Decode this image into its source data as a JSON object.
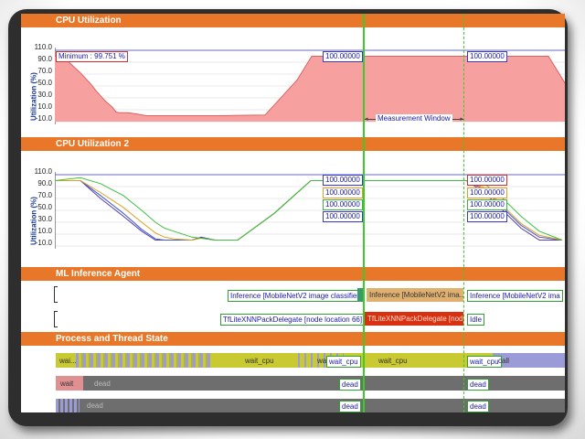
{
  "colors": {
    "header": "#e8772a",
    "cpu_fill": "#f7a0a0",
    "cpu_line": "#e06060",
    "cursor": "#3ccc2a",
    "wait_cpu": "#c9c932",
    "running": "#9b9bd8",
    "dead": "#6e6e6e",
    "wait": "#e09090"
  },
  "sections": {
    "cpu": "CPU Utilization",
    "cpu2": "CPU Utilization 2",
    "ml": "ML Inference Agent",
    "process": "Process and Thread State"
  },
  "axis": {
    "ylabel": "Utilization (%)",
    "ticks": [
      "110.0",
      "90.0",
      "70.0",
      "50.0",
      "30.0",
      "10.0",
      "-10.0"
    ]
  },
  "cpu": {
    "minimum_label": "Minimum : 99.751 %",
    "value_a": "100.00000",
    "value_b": "100.00000",
    "measurement_window": "Measurement Window"
  },
  "cpu2": {
    "values_left": [
      "100.00000",
      "100.00000",
      "100.00000",
      "100.00000"
    ],
    "values_right": [
      "100.00000",
      "100.00000",
      "100.00000",
      "100.00000"
    ]
  },
  "ml": {
    "row1": {
      "label_left": "Inference [MobileNetV2 image classifier]",
      "bar_mid": "Inference [MobileNetV2 ima...",
      "label_right": "Inference [MobileNetV2 ima"
    },
    "row2": {
      "label_left": "TfLiteXNNPackDelegate [node location 66]",
      "bar_mid": "TfLiteXNNPackDelegate [nod...",
      "label_right": "Idle"
    }
  },
  "process": {
    "row1": {
      "wait": "wai...",
      "wait_cpu_1": "wait_cpu",
      "wa": "wa",
      "box_left": "wait_cpu",
      "wait_cpu_2": "wait_cpu",
      "box_right": "wait_cpu",
      "call": "call"
    },
    "row2": {
      "wait": "wait",
      "dead": "dead",
      "box_left": "dead",
      "box_right": "dead"
    },
    "row3": {
      "dead": "dead",
      "box_left": "dead",
      "box_right": "dead"
    }
  },
  "chart_data": [
    {
      "type": "area",
      "title": "CPU Utilization",
      "ylabel": "Utilization (%)",
      "ylim": [
        -10,
        110
      ],
      "yticks": [
        110,
        90,
        70,
        50,
        30,
        10,
        -10
      ],
      "x": [
        0,
        7,
        14,
        21,
        28,
        34,
        40,
        45,
        55,
        63,
        67,
        71,
        80,
        89,
        100,
        131,
        180,
        230,
        265,
        281,
        300,
        334,
        395,
        430,
        447,
        466,
        500,
        540,
        560,
        575
      ],
      "series": [
        {
          "values": [
            100,
            100,
            92,
            82,
            72,
            62,
            52,
            42,
            25,
            14,
            6,
            5,
            5,
            3,
            0,
            0,
            0,
            1,
            60,
            100,
            100,
            100,
            100,
            100,
            100,
            100,
            100,
            100,
            50,
            0
          ]
        }
      ],
      "annotations": [
        "Minimum : 99.751 %",
        "100.00000",
        "100.00000",
        "Measurement Window"
      ]
    },
    {
      "type": "line",
      "title": "CPU Utilization 2",
      "ylabel": "Utilization (%)",
      "ylim": [
        -10,
        110
      ],
      "yticks": [
        110,
        90,
        70,
        50,
        30,
        10,
        -10
      ],
      "x": [
        0,
        28,
        50,
        75,
        95,
        110,
        120,
        130,
        150,
        160,
        175,
        200,
        240,
        280,
        320,
        372,
        420,
        450,
        470,
        490,
        510,
        530,
        555
      ],
      "series": [
        {
          "values": [
            100,
            100,
            70,
            40,
            15,
            0,
            0,
            0,
            0,
            5,
            0,
            0,
            45,
            100,
            100,
            100,
            100,
            100,
            80,
            50,
            20,
            0,
            0
          ]
        },
        {
          "values": [
            100,
            100,
            75,
            45,
            18,
            2,
            0,
            0,
            0,
            4,
            0,
            0,
            45,
            100,
            100,
            100,
            100,
            100,
            85,
            55,
            25,
            5,
            0
          ]
        },
        {
          "values": [
            100,
            100,
            80,
            55,
            30,
            12,
            5,
            2,
            0,
            3,
            0,
            0,
            45,
            100,
            100,
            100,
            100,
            100,
            88,
            58,
            28,
            8,
            0
          ]
        },
        {
          "values": [
            100,
            105,
            95,
            75,
            50,
            30,
            20,
            15,
            5,
            3,
            0,
            0,
            45,
            100,
            100,
            100,
            100,
            100,
            95,
            70,
            40,
            15,
            0
          ]
        }
      ],
      "annotations": [
        "100.00000",
        "100.00000",
        "100.00000",
        "100.00000"
      ]
    }
  ]
}
